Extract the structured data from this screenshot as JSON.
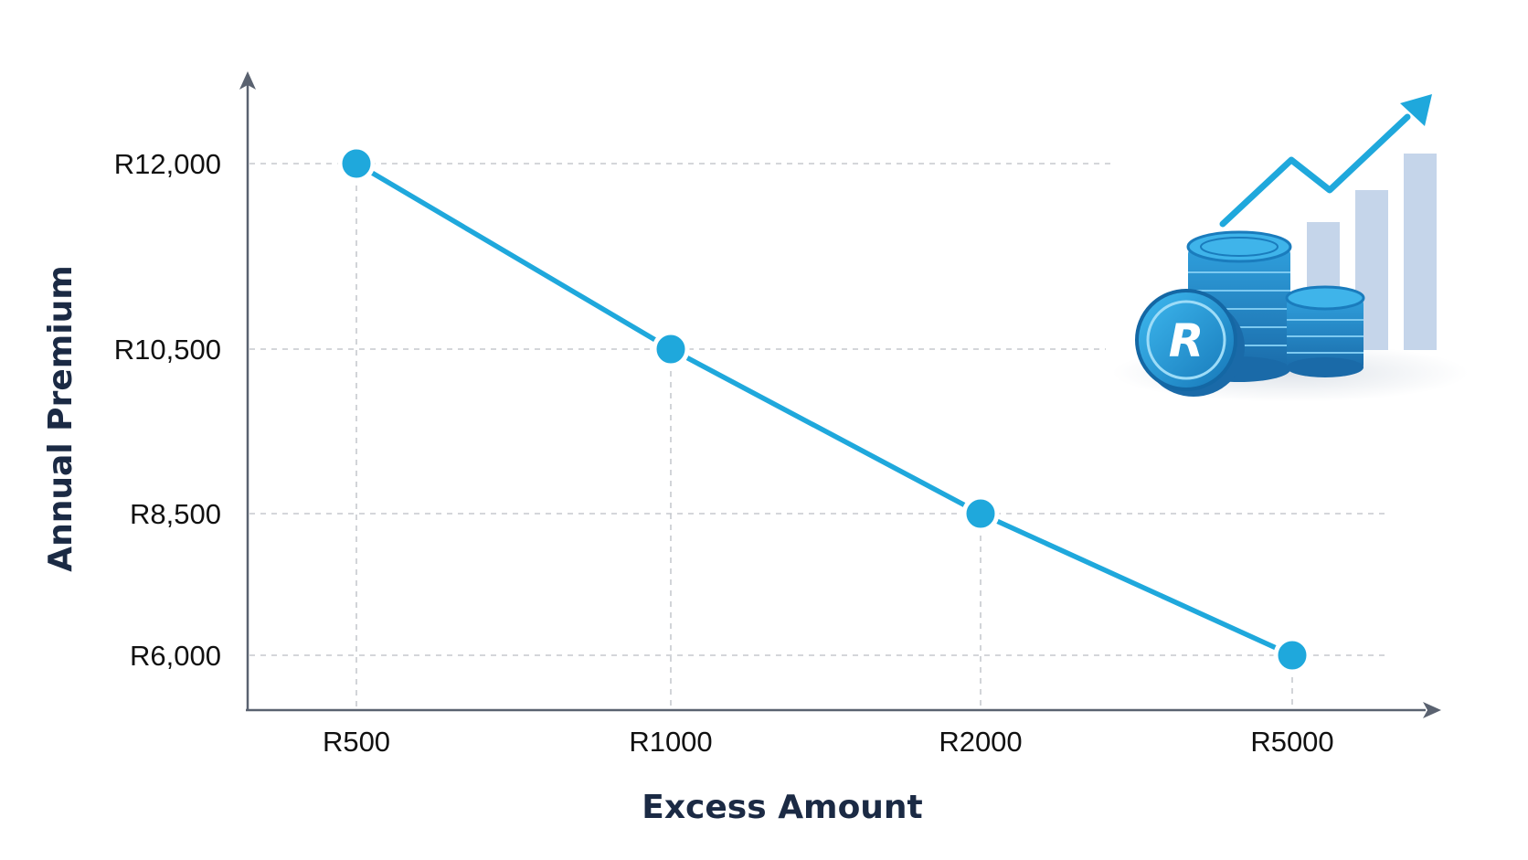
{
  "chart_data": {
    "type": "line",
    "xlabel": "Excess Amount",
    "ylabel": "Annual Premium",
    "categories": [
      "R500",
      "R1000",
      "R2000",
      "R5000"
    ],
    "series": [
      {
        "values": [
          12000,
          10500,
          8500,
          6000
        ]
      }
    ],
    "y_ticks": [
      {
        "value": 12000,
        "label": "R12,000"
      },
      {
        "value": 10500,
        "label": "R10,500"
      },
      {
        "value": 8500,
        "label": "R8,500"
      },
      {
        "value": 6000,
        "label": "R6,000"
      }
    ],
    "grid": true,
    "legend": "none",
    "colors": {
      "line": "#1fa8dc",
      "marker": "#1fa8dc",
      "axis": "#5a6270",
      "grid": "#c6c9ce",
      "text": "#111111",
      "axis_title": "#1b2a44",
      "coin": "#2a9fd6",
      "bars": "#c5d5ea"
    }
  },
  "decoration": {
    "icon": "rand-coins-growth-icon",
    "coin_letter": "R"
  }
}
